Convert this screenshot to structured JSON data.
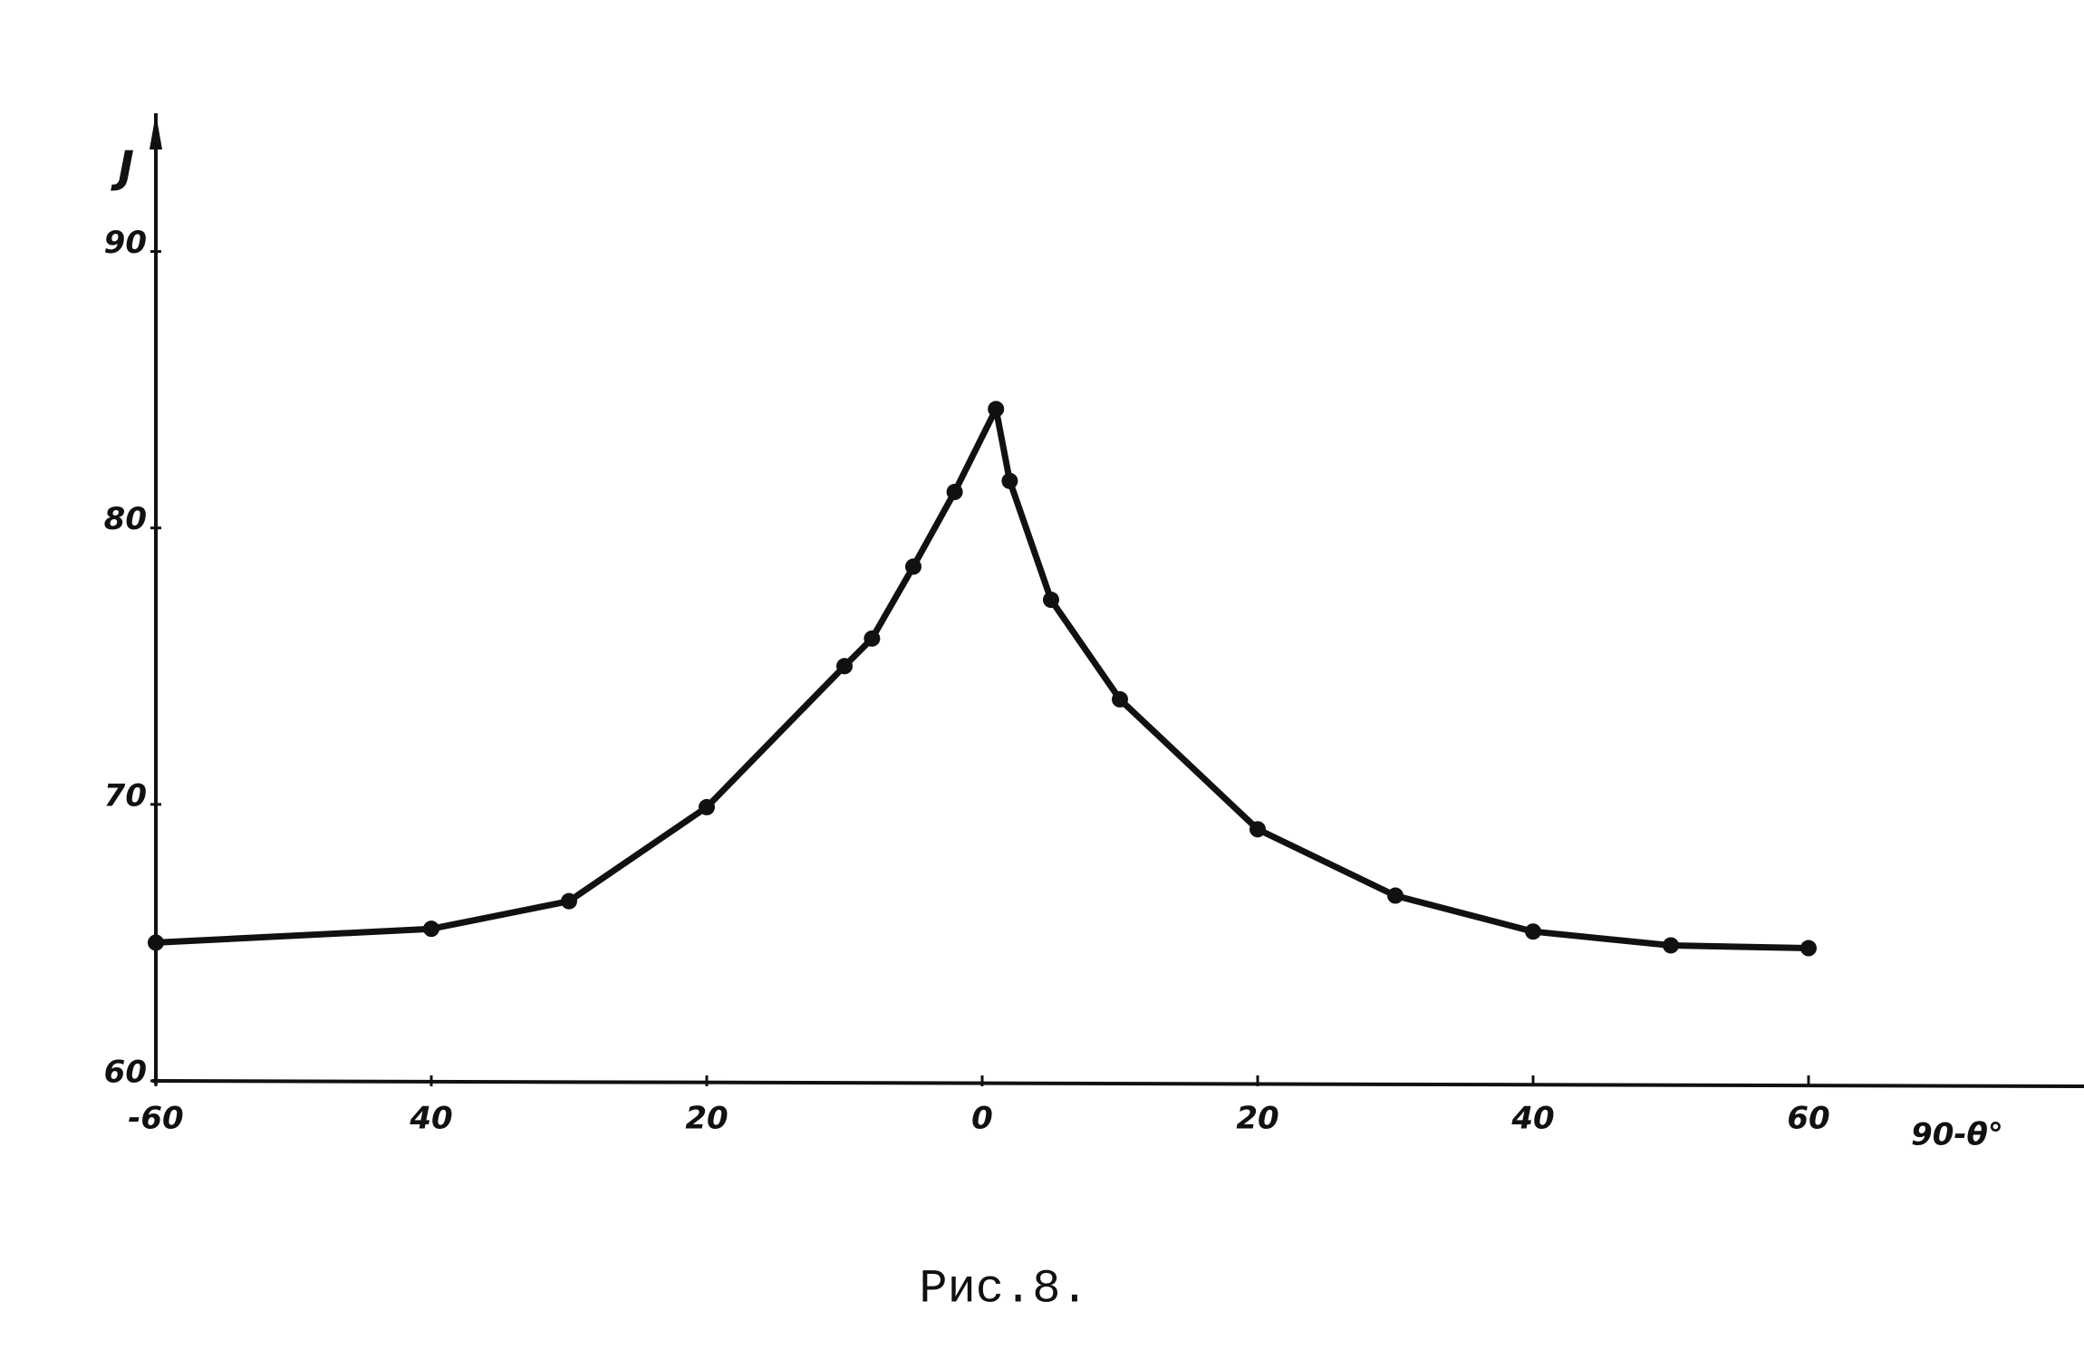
{
  "chart_data": {
    "type": "line",
    "ylabel": "J",
    "xlabel": "90-θ°",
    "caption": "Рис.8.",
    "x": [
      -60,
      -40,
      -30,
      -20,
      -10,
      -8,
      -5,
      -2,
      1,
      2,
      5,
      10,
      20,
      30,
      40,
      50,
      60
    ],
    "series": [
      {
        "color": "#111111",
        "values": [
          65.0,
          65.5,
          66.5,
          69.9,
          75.0,
          76.0,
          78.6,
          81.3,
          84.3,
          81.7,
          77.4,
          73.8,
          69.1,
          66.7,
          65.4,
          64.9,
          64.8
        ]
      }
    ],
    "xlim": [
      -60,
      80
    ],
    "xticks": [
      {
        "value": -60,
        "label": "-60"
      },
      {
        "value": -40,
        "label": "40"
      },
      {
        "value": -20,
        "label": "20"
      },
      0,
      20,
      40,
      60
    ],
    "ylim": [
      60,
      95
    ],
    "yticks": [
      60,
      70,
      80,
      90
    ],
    "grid": false
  }
}
